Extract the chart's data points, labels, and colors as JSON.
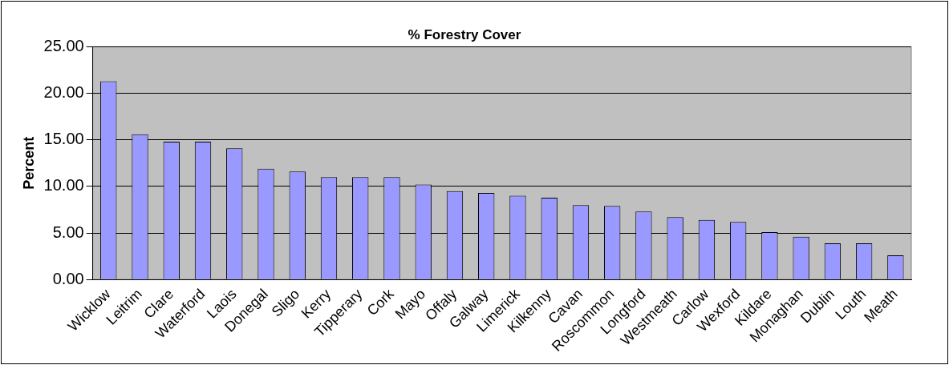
{
  "chart_data": {
    "type": "bar",
    "title": "% Forestry Cover",
    "ylabel": "Percent",
    "categories": [
      "Wicklow",
      "Leitrim",
      "Clare",
      "Waterford",
      "Laois",
      "Donegal",
      "Sligo",
      "Kerry",
      "Tipperary",
      "Cork",
      "Mayo",
      "Offaly",
      "Galway",
      "Limerick",
      "Kilkenny",
      "Cavan",
      "Roscommon",
      "Longford",
      "Westmeath",
      "Carlow",
      "Wexford",
      "Kildare",
      "Monaghan",
      "Dublin",
      "Louth",
      "Meath"
    ],
    "values": [
      21.3,
      15.6,
      14.8,
      14.8,
      14.1,
      11.9,
      11.6,
      11.0,
      11.0,
      11.0,
      10.2,
      9.5,
      9.3,
      9.0,
      8.8,
      8.0,
      7.9,
      7.3,
      6.7,
      6.4,
      6.2,
      5.1,
      4.6,
      3.9,
      3.9,
      2.6
    ],
    "color": "#9999ff",
    "ylim": [
      0,
      25
    ],
    "yticks": [
      {
        "value": 0,
        "label": "0.00"
      },
      {
        "value": 5,
        "label": "5.00"
      },
      {
        "value": 10,
        "label": "10.00"
      },
      {
        "value": 15,
        "label": "15.00"
      },
      {
        "value": 20,
        "label": "20.00"
      },
      {
        "value": 25,
        "label": "25.00"
      }
    ],
    "grid": "y",
    "legend": false
  }
}
